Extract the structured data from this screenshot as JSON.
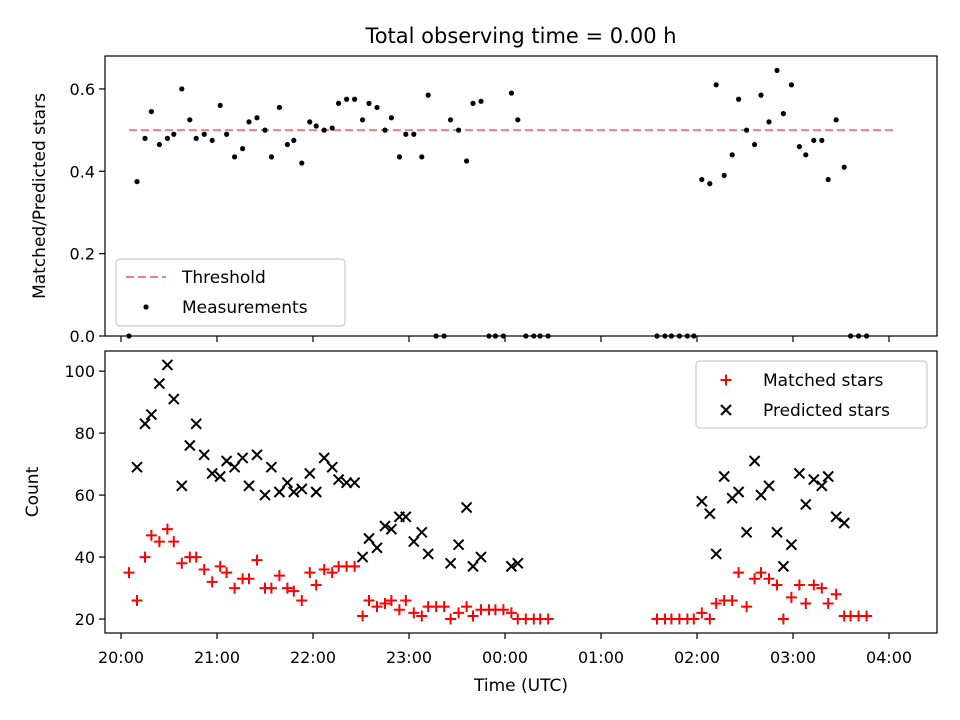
{
  "figure_title": "Total observing time = 0.00 h",
  "chart_data": [
    {
      "type": "scatter",
      "ylabel": "Matched/Predicted stars",
      "xlabel": "",
      "xlim": [
        "19:50",
        "04:30"
      ],
      "ylim": [
        0,
        0.68
      ],
      "yticks": [
        0.0,
        0.2,
        0.4,
        0.6
      ],
      "ytick_labels": [
        "0.0",
        "0.2",
        "0.4",
        "0.6"
      ],
      "grid": false,
      "legend_position": "lower-left",
      "threshold": {
        "name": "Threshold",
        "value": 0.5,
        "x_range": [
          "20:05",
          "04:05"
        ],
        "color": "#f08080"
      },
      "series": [
        {
          "name": "Measurements",
          "color": "#000000",
          "points": [
            [
              "20:05",
              0.0
            ],
            [
              "20:10",
              0.375
            ],
            [
              "20:15",
              0.48
            ],
            [
              "20:19",
              0.545
            ],
            [
              "20:24",
              0.465
            ],
            [
              "20:29",
              0.48
            ],
            [
              "20:33",
              0.49
            ],
            [
              "20:38",
              0.6
            ],
            [
              "20:43",
              0.525
            ],
            [
              "20:47",
              0.48
            ],
            [
              "20:52",
              0.49
            ],
            [
              "20:57",
              0.475
            ],
            [
              "21:02",
              0.56
            ],
            [
              "21:06",
              0.49
            ],
            [
              "21:11",
              0.435
            ],
            [
              "21:16",
              0.455
            ],
            [
              "21:20",
              0.52
            ],
            [
              "21:25",
              0.53
            ],
            [
              "21:30",
              0.5
            ],
            [
              "21:34",
              0.435
            ],
            [
              "21:39",
              0.555
            ],
            [
              "21:44",
              0.465
            ],
            [
              "21:48",
              0.475
            ],
            [
              "21:53",
              0.42
            ],
            [
              "21:58",
              0.52
            ],
            [
              "22:02",
              0.51
            ],
            [
              "22:07",
              0.5
            ],
            [
              "22:12",
              0.505
            ],
            [
              "22:16",
              0.565
            ],
            [
              "22:21",
              0.575
            ],
            [
              "22:26",
              0.575
            ],
            [
              "22:31",
              0.525
            ],
            [
              "22:35",
              0.565
            ],
            [
              "22:40",
              0.555
            ],
            [
              "22:45",
              0.5
            ],
            [
              "22:49",
              0.53
            ],
            [
              "22:54",
              0.435
            ],
            [
              "22:58",
              0.49
            ],
            [
              "23:03",
              0.49
            ],
            [
              "23:08",
              0.435
            ],
            [
              "23:12",
              0.585
            ],
            [
              "23:17",
              0.0
            ],
            [
              "23:22",
              0.0
            ],
            [
              "23:26",
              0.525
            ],
            [
              "23:31",
              0.5
            ],
            [
              "23:36",
              0.425
            ],
            [
              "23:40",
              0.565
            ],
            [
              "23:45",
              0.57
            ],
            [
              "23:50",
              0.0
            ],
            [
              "23:54",
              0.0
            ],
            [
              "23:59",
              0.0
            ],
            [
              "00:04",
              0.59
            ],
            [
              "00:08",
              0.525
            ],
            [
              "00:13",
              0.0
            ],
            [
              "00:18",
              0.0
            ],
            [
              "00:22",
              0.0
            ],
            [
              "00:27",
              0.0
            ],
            [
              "01:35",
              0.0
            ],
            [
              "01:40",
              0.0
            ],
            [
              "01:44",
              0.0
            ],
            [
              "01:49",
              0.0
            ],
            [
              "01:54",
              0.0
            ],
            [
              "01:58",
              0.0
            ],
            [
              "02:03",
              0.38
            ],
            [
              "02:08",
              0.37
            ],
            [
              "02:12",
              0.61
            ],
            [
              "02:17",
              0.39
            ],
            [
              "02:22",
              0.44
            ],
            [
              "02:26",
              0.575
            ],
            [
              "02:31",
              0.5
            ],
            [
              "02:36",
              0.465
            ],
            [
              "02:40",
              0.585
            ],
            [
              "02:45",
              0.52
            ],
            [
              "02:50",
              0.645
            ],
            [
              "02:54",
              0.54
            ],
            [
              "02:59",
              0.61
            ],
            [
              "03:04",
              0.46
            ],
            [
              "03:08",
              0.44
            ],
            [
              "03:13",
              0.475
            ],
            [
              "03:18",
              0.475
            ],
            [
              "03:22",
              0.38
            ],
            [
              "03:27",
              0.525
            ],
            [
              "03:32",
              0.41
            ],
            [
              "03:36",
              0.0
            ],
            [
              "03:41",
              0.0
            ],
            [
              "03:46",
              0.0
            ]
          ]
        }
      ]
    },
    {
      "type": "scatter",
      "ylabel": "Count",
      "xlabel": "Time (UTC)",
      "xlim": [
        "19:50",
        "04:30"
      ],
      "ylim": [
        15.5,
        106.5
      ],
      "yticks": [
        20,
        40,
        60,
        80,
        100
      ],
      "ytick_labels": [
        "20",
        "40",
        "60",
        "80",
        "100"
      ],
      "xticks": [
        "20:00",
        "21:00",
        "22:00",
        "23:00",
        "00:00",
        "01:00",
        "02:00",
        "03:00",
        "04:00"
      ],
      "xtick_labels": [
        "20:00",
        "21:00",
        "22:00",
        "23:00",
        "00:00",
        "01:00",
        "02:00",
        "03:00",
        "04:00"
      ],
      "grid": false,
      "legend_position": "upper-right",
      "series": [
        {
          "name": "Matched stars",
          "marker": "+",
          "color": "#ff0000",
          "points": [
            [
              "20:05",
              35
            ],
            [
              "20:10",
              26
            ],
            [
              "20:15",
              40
            ],
            [
              "20:19",
              47
            ],
            [
              "20:24",
              45
            ],
            [
              "20:29",
              49
            ],
            [
              "20:33",
              45
            ],
            [
              "20:38",
              38
            ],
            [
              "20:43",
              40
            ],
            [
              "20:47",
              40
            ],
            [
              "20:52",
              36
            ],
            [
              "20:57",
              32
            ],
            [
              "21:02",
              37
            ],
            [
              "21:06",
              35
            ],
            [
              "21:11",
              30
            ],
            [
              "21:16",
              33
            ],
            [
              "21:20",
              33
            ],
            [
              "21:25",
              39
            ],
            [
              "21:30",
              30
            ],
            [
              "21:34",
              30
            ],
            [
              "21:39",
              34
            ],
            [
              "21:44",
              30
            ],
            [
              "21:48",
              29
            ],
            [
              "21:53",
              26
            ],
            [
              "21:58",
              35
            ],
            [
              "22:02",
              31
            ],
            [
              "22:07",
              36
            ],
            [
              "22:12",
              35
            ],
            [
              "22:16",
              37
            ],
            [
              "22:21",
              37
            ],
            [
              "22:26",
              37
            ],
            [
              "22:31",
              21
            ],
            [
              "22:35",
              26
            ],
            [
              "22:40",
              24
            ],
            [
              "22:45",
              25
            ],
            [
              "22:49",
              26
            ],
            [
              "22:54",
              23
            ],
            [
              "22:58",
              26
            ],
            [
              "23:03",
              22
            ],
            [
              "23:08",
              21
            ],
            [
              "23:12",
              24
            ],
            [
              "23:17",
              24
            ],
            [
              "23:22",
              24
            ],
            [
              "23:26",
              20
            ],
            [
              "23:31",
              22
            ],
            [
              "23:36",
              24
            ],
            [
              "23:40",
              21
            ],
            [
              "23:45",
              23
            ],
            [
              "23:50",
              23
            ],
            [
              "23:54",
              23
            ],
            [
              "23:59",
              23
            ],
            [
              "00:04",
              22
            ],
            [
              "00:08",
              20
            ],
            [
              "00:13",
              20
            ],
            [
              "00:18",
              20
            ],
            [
              "00:22",
              20
            ],
            [
              "00:27",
              20
            ],
            [
              "01:35",
              20
            ],
            [
              "01:40",
              20
            ],
            [
              "01:44",
              20
            ],
            [
              "01:49",
              20
            ],
            [
              "01:54",
              20
            ],
            [
              "01:58",
              20
            ],
            [
              "02:03",
              22
            ],
            [
              "02:08",
              20
            ],
            [
              "02:12",
              25
            ],
            [
              "02:17",
              26
            ],
            [
              "02:22",
              26
            ],
            [
              "02:26",
              35
            ],
            [
              "02:31",
              24
            ],
            [
              "02:36",
              33
            ],
            [
              "02:40",
              35
            ],
            [
              "02:45",
              33
            ],
            [
              "02:50",
              31
            ],
            [
              "02:54",
              20
            ],
            [
              "02:59",
              27
            ],
            [
              "03:04",
              31
            ],
            [
              "03:08",
              25
            ],
            [
              "03:13",
              31
            ],
            [
              "03:18",
              30
            ],
            [
              "03:22",
              25
            ],
            [
              "03:27",
              28
            ],
            [
              "03:32",
              21
            ],
            [
              "03:36",
              21
            ],
            [
              "03:41",
              21
            ],
            [
              "03:46",
              21
            ]
          ]
        },
        {
          "name": "Predicted stars",
          "marker": "x",
          "color": "#000000",
          "points": [
            [
              "20:10",
              69
            ],
            [
              "20:15",
              83
            ],
            [
              "20:19",
              86
            ],
            [
              "20:24",
              96
            ],
            [
              "20:29",
              102
            ],
            [
              "20:33",
              91
            ],
            [
              "20:38",
              63
            ],
            [
              "20:43",
              76
            ],
            [
              "20:47",
              83
            ],
            [
              "20:52",
              73
            ],
            [
              "20:57",
              67
            ],
            [
              "21:02",
              66
            ],
            [
              "21:06",
              71
            ],
            [
              "21:11",
              69
            ],
            [
              "21:16",
              72
            ],
            [
              "21:20",
              63
            ],
            [
              "21:25",
              73
            ],
            [
              "21:30",
              60
            ],
            [
              "21:34",
              69
            ],
            [
              "21:39",
              61
            ],
            [
              "21:44",
              64
            ],
            [
              "21:48",
              61
            ],
            [
              "21:53",
              62
            ],
            [
              "21:58",
              67
            ],
            [
              "22:02",
              61
            ],
            [
              "22:07",
              72
            ],
            [
              "22:12",
              69
            ],
            [
              "22:16",
              65
            ],
            [
              "22:21",
              64
            ],
            [
              "22:26",
              64
            ],
            [
              "22:31",
              40
            ],
            [
              "22:35",
              46
            ],
            [
              "22:40",
              43
            ],
            [
              "22:45",
              50
            ],
            [
              "22:49",
              49
            ],
            [
              "22:54",
              53
            ],
            [
              "22:58",
              53
            ],
            [
              "23:03",
              45
            ],
            [
              "23:08",
              48
            ],
            [
              "23:12",
              41
            ],
            [
              "23:26",
              38
            ],
            [
              "23:31",
              44
            ],
            [
              "23:36",
              56
            ],
            [
              "23:40",
              37
            ],
            [
              "23:45",
              40
            ],
            [
              "00:04",
              37
            ],
            [
              "00:08",
              38
            ],
            [
              "02:03",
              58
            ],
            [
              "02:08",
              54
            ],
            [
              "02:12",
              41
            ],
            [
              "02:17",
              66
            ],
            [
              "02:22",
              59
            ],
            [
              "02:26",
              61
            ],
            [
              "02:31",
              48
            ],
            [
              "02:36",
              71
            ],
            [
              "02:40",
              60
            ],
            [
              "02:45",
              63
            ],
            [
              "02:50",
              48
            ],
            [
              "02:54",
              37
            ],
            [
              "02:59",
              44
            ],
            [
              "03:04",
              67
            ],
            [
              "03:08",
              57
            ],
            [
              "03:13",
              65
            ],
            [
              "03:18",
              63
            ],
            [
              "03:22",
              66
            ],
            [
              "03:27",
              53
            ],
            [
              "03:32",
              51
            ]
          ]
        }
      ]
    }
  ]
}
